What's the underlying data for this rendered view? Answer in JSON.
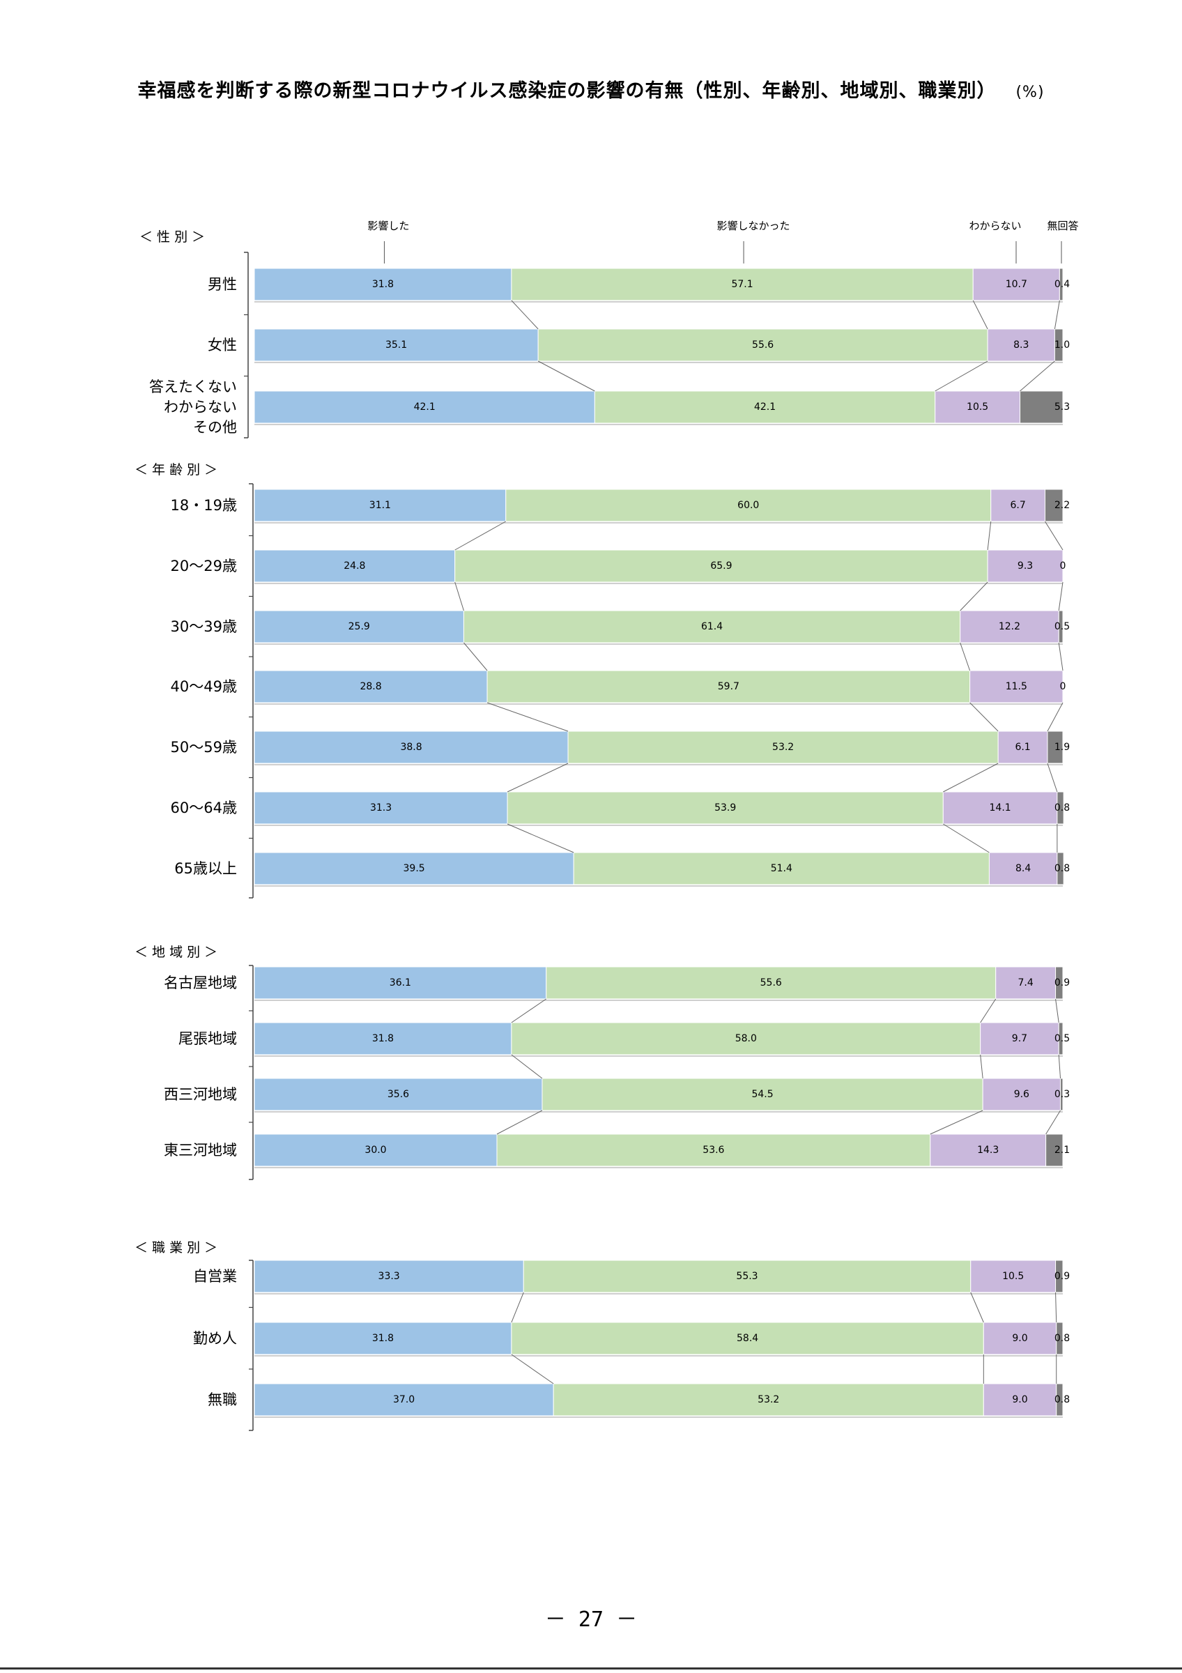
{
  "title": "幸福感を判断する際の新型コロナウイルス感染症の影響の有無（性別、年齢別、地域別、職業別）",
  "unit": "(%)",
  "page_number": "－ 27 －",
  "colors": {
    "affected": "#9dc3e6",
    "not_affected": "#c5e0b4",
    "unknown": "#c9b8dc",
    "no_answer": "#7f7f7f"
  },
  "chart_data": {
    "type": "bar",
    "stacked": "100%",
    "orientation": "horizontal",
    "series": [
      {
        "name": "影響した"
      },
      {
        "name": "影響しなかった"
      },
      {
        "name": "わからない"
      },
      {
        "name": "無回答"
      }
    ],
    "groups": [
      {
        "label": "＜ 性 別 ＞",
        "rows": [
          {
            "label": "男性",
            "values": [
              31.8,
              57.1,
              10.7,
              0.4
            ],
            "labels": [
              "31.8",
              "57.1",
              "10.7",
              "0.4"
            ]
          },
          {
            "label": "女性",
            "values": [
              35.1,
              55.6,
              8.3,
              1.0
            ],
            "labels": [
              "35.1",
              "55.6",
              "8.3",
              "1.0"
            ]
          },
          {
            "label": "答えたくない\nわからない\nその他",
            "values": [
              42.1,
              42.1,
              10.5,
              5.3
            ],
            "labels": [
              "42.1",
              "42.1",
              "10.5",
              "5.3"
            ]
          }
        ]
      },
      {
        "label": "＜ 年 齢 別 ＞",
        "rows": [
          {
            "label": "18・19歳",
            "values": [
              31.1,
              60.0,
              6.7,
              2.2
            ],
            "labels": [
              "31.1",
              "60.0",
              "6.7",
              "2.2"
            ]
          },
          {
            "label": "20～29歳",
            "values": [
              24.8,
              65.9,
              9.3,
              0
            ],
            "labels": [
              "24.8",
              "65.9",
              "9.3",
              "0"
            ]
          },
          {
            "label": "30～39歳",
            "values": [
              25.9,
              61.4,
              12.2,
              0.5
            ],
            "labels": [
              "25.9",
              "61.4",
              "12.2",
              "0.5"
            ]
          },
          {
            "label": "40～49歳",
            "values": [
              28.8,
              59.7,
              11.5,
              0
            ],
            "labels": [
              "28.8",
              "59.7",
              "11.5",
              "0"
            ]
          },
          {
            "label": "50～59歳",
            "values": [
              38.8,
              53.2,
              6.1,
              1.9
            ],
            "labels": [
              "38.8",
              "53.2",
              "6.1",
              "1.9"
            ]
          },
          {
            "label": "60～64歳",
            "values": [
              31.3,
              53.9,
              14.1,
              0.8
            ],
            "labels": [
              "31.3",
              "53.9",
              "14.1",
              "0.8"
            ]
          },
          {
            "label": "65歳以上",
            "values": [
              39.5,
              51.4,
              8.4,
              0.8
            ],
            "labels": [
              "39.5",
              "51.4",
              "8.4",
              "0.8"
            ]
          }
        ]
      },
      {
        "label": "＜ 地 域 別 ＞",
        "rows": [
          {
            "label": "名古屋地域",
            "values": [
              36.1,
              55.6,
              7.4,
              0.9
            ],
            "labels": [
              "36.1",
              "55.6",
              "7.4",
              "0.9"
            ]
          },
          {
            "label": "尾張地域",
            "values": [
              31.8,
              58.0,
              9.7,
              0.5
            ],
            "labels": [
              "31.8",
              "58.0",
              "9.7",
              "0.5"
            ]
          },
          {
            "label": "西三河地域",
            "values": [
              35.6,
              54.5,
              9.6,
              0.3
            ],
            "labels": [
              "35.6",
              "54.5",
              "9.6",
              "0.3"
            ]
          },
          {
            "label": "東三河地域",
            "values": [
              30.0,
              53.6,
              14.3,
              2.1
            ],
            "labels": [
              "30.0",
              "53.6",
              "14.3",
              "2.1"
            ]
          }
        ]
      },
      {
        "label": "＜ 職 業 別 ＞",
        "rows": [
          {
            "label": "自営業",
            "values": [
              33.3,
              55.3,
              10.5,
              0.9
            ],
            "labels": [
              "33.3",
              "55.3",
              "10.5",
              "0.9"
            ]
          },
          {
            "label": "勤め人",
            "values": [
              31.8,
              58.4,
              9.0,
              0.8
            ],
            "labels": [
              "31.8",
              "58.4",
              "9.0",
              "0.8"
            ]
          },
          {
            "label": "無職",
            "values": [
              37.0,
              53.2,
              9.0,
              0.8
            ],
            "labels": [
              "37.0",
              "53.2",
              "9.0",
              "0.8"
            ]
          }
        ]
      }
    ]
  }
}
